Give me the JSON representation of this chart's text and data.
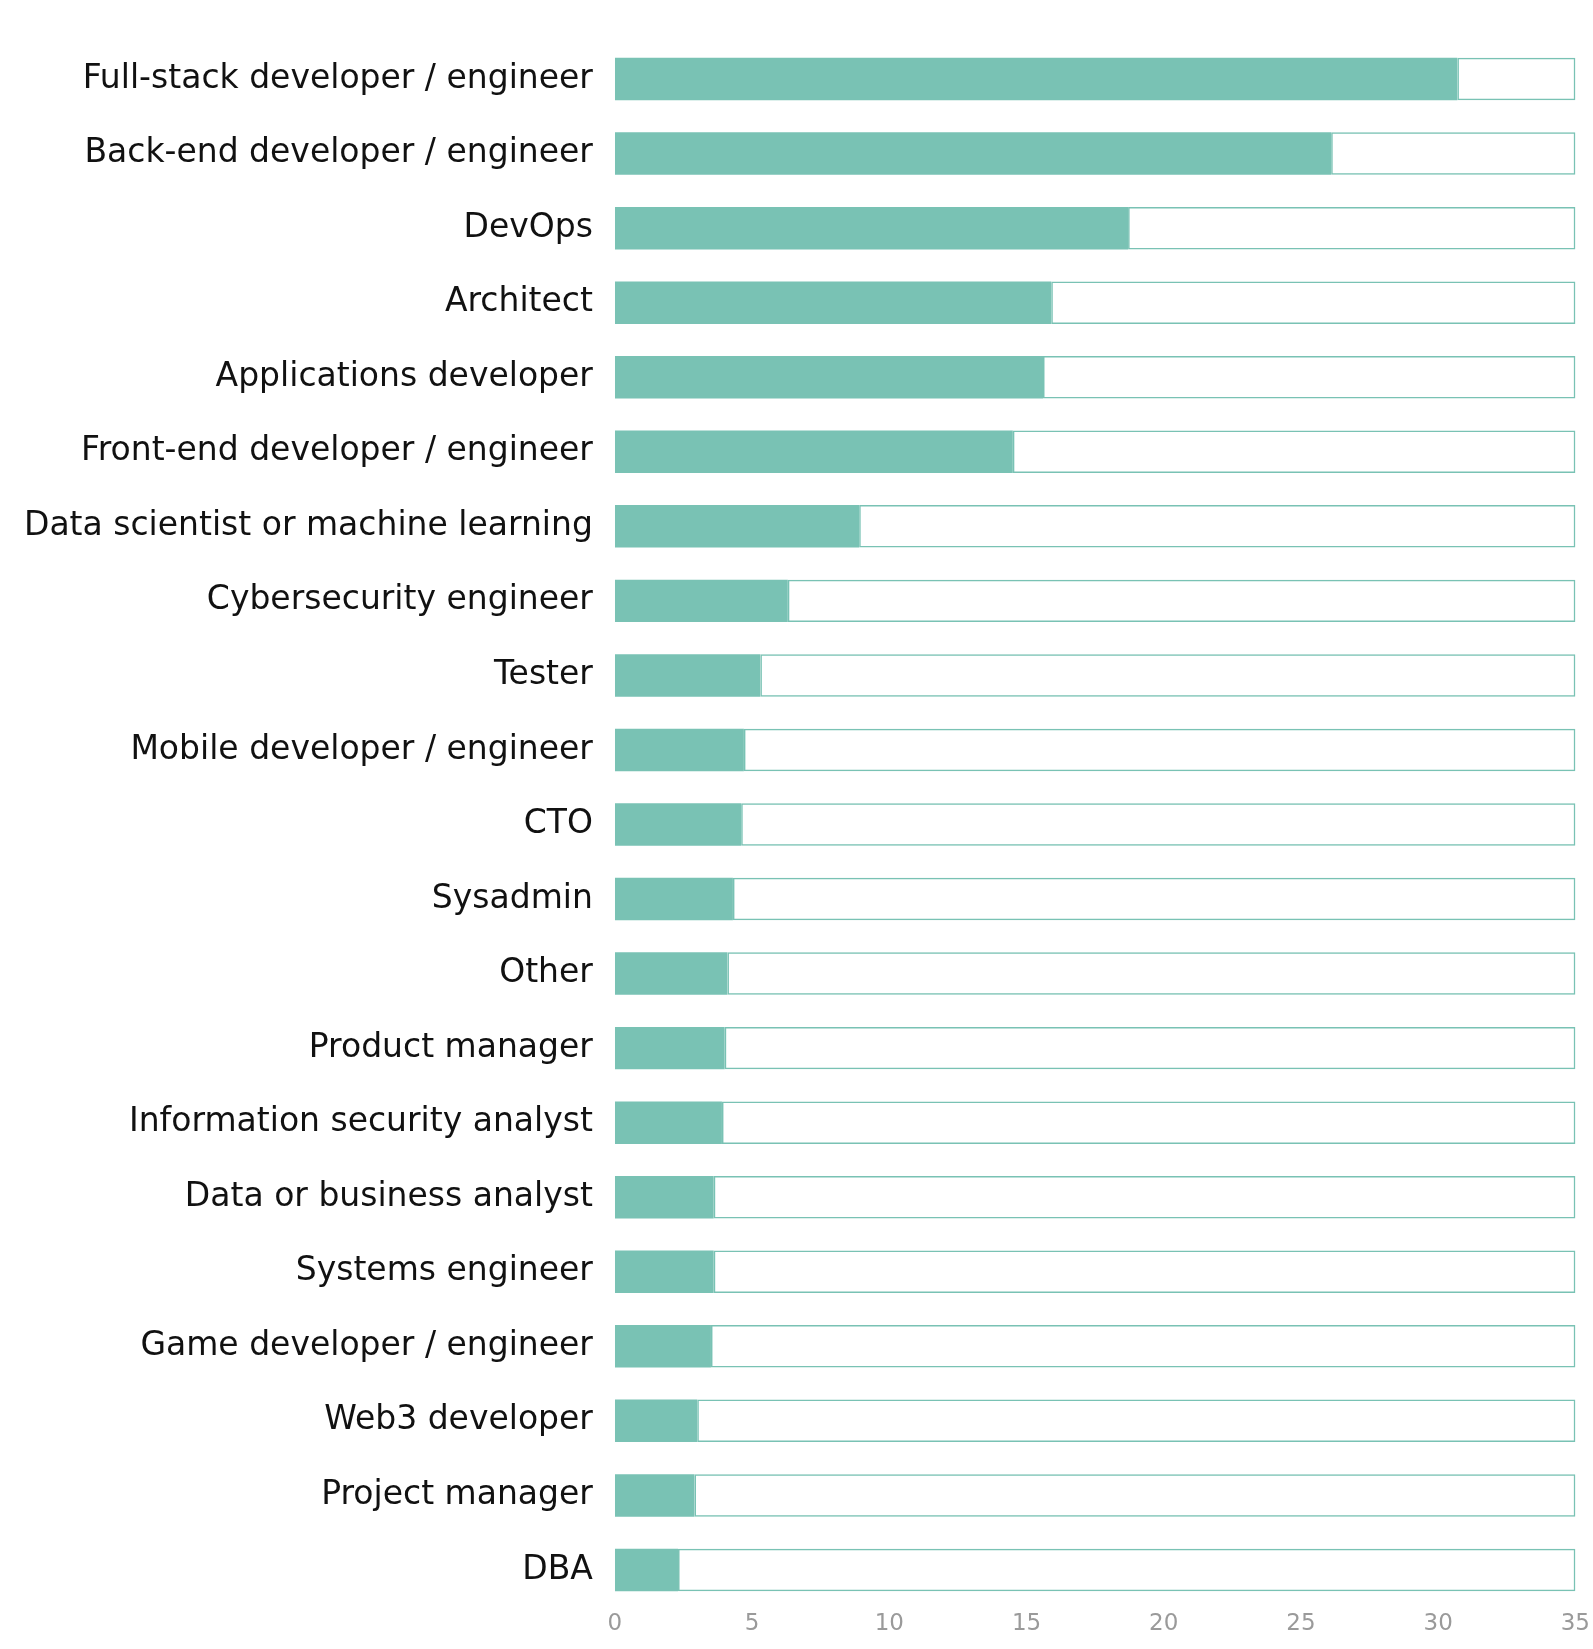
{
  "chart_data": {
    "type": "bar",
    "orientation": "horizontal",
    "stacked": true,
    "categories": [
      "Full-stack developer / engineer",
      "Back-end developer / engineer",
      "DevOps",
      "Architect",
      "Applications developer",
      "Front-end developer / engineer",
      "Data scientist or machine learning",
      "Cybersecurity engineer",
      "Tester",
      "Mobile developer / engineer",
      "CTO",
      "Sysadmin",
      "Other",
      "Product manager",
      "Information security analyst",
      "Data or business analyst",
      "Systems engineer",
      "Game developer / engineer",
      "Web3 developer",
      "Project manager",
      "DBA"
    ],
    "series": [
      {
        "color": "#79c2b4",
        "values": [
          30.7,
          26.1,
          18.7,
          15.9,
          15.6,
          14.5,
          8.9,
          6.3,
          5.3,
          4.7,
          4.6,
          4.3,
          4.1,
          4.0,
          3.9,
          3.6,
          3.6,
          3.5,
          3.0,
          2.9,
          2.3
        ]
      },
      {
        "color": "#79c2b4",
        "values": [
          4.3,
          8.9,
          16.3,
          19.1,
          19.4,
          20.5,
          26.1,
          28.7,
          29.7,
          30.3,
          30.4,
          30.7,
          30.9,
          31.0,
          31.1,
          31.4,
          31.4,
          31.5,
          32.0,
          32.1,
          32.7
        ]
      }
    ],
    "xlim": [
      0,
      35
    ],
    "xticks": [
      0,
      5,
      10,
      15,
      20,
      25,
      30,
      35
    ],
    "grid": false,
    "legend": false
  }
}
